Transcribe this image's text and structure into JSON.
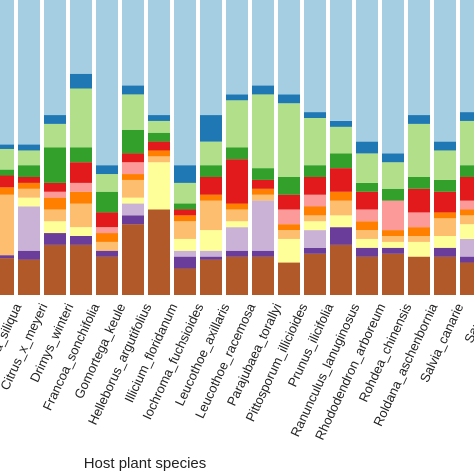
{
  "chart_data": {
    "type": "stacked_bar",
    "xlabel": "Host plant species",
    "categories": [
      "nsis",
      "ia_siliqua",
      "Citrus_x_meyeri",
      "Drimys_winteri",
      "Francoa_sonchifolia",
      "Gomortega_keule",
      "Helleborus_argutifolius",
      "Illicium_floridanum",
      "Iochroma_fuchsioides",
      "Leucothoe_axillaris",
      "Leucothoe_racemosa",
      "Parajubaea_torallyi",
      "Pittosporum_illicioides",
      "Prunus_ilicifolia",
      "Ranunculus_lanuginosus",
      "Rhododendron_arboreum",
      "Rohdea_chinensis",
      "Roldana_aschenbornia",
      "Salvia_canarie",
      "Saurau"
    ],
    "ylim": [
      0,
      100
    ],
    "series": [
      {
        "color": "#b15928",
        "values": [
          12.5,
          12.5,
          12,
          17,
          17,
          13,
          24,
          29,
          9,
          12,
          13,
          13,
          11,
          14,
          17,
          13,
          14,
          13,
          13,
          11
        ]
      },
      {
        "color": "#6a3d9a",
        "values": [
          1,
          1,
          3,
          4,
          3,
          2,
          3,
          0,
          4,
          1,
          2,
          2,
          0,
          2,
          6,
          3,
          2,
          0,
          3,
          2
        ]
      },
      {
        "color": "#cab2d6",
        "values": [
          0,
          0,
          15,
          0,
          0,
          0,
          4,
          0,
          2,
          2,
          8,
          17,
          0,
          6,
          0,
          0,
          0,
          0,
          0,
          6
        ]
      },
      {
        "color": "#ffff99",
        "values": [
          0,
          0,
          3,
          4,
          3,
          0,
          2,
          16,
          4,
          7,
          2,
          0,
          8,
          3,
          4,
          3,
          2,
          5,
          4,
          5
        ]
      },
      {
        "color": "#fdbf6f",
        "values": [
          20.5,
          20.5,
          3,
          4,
          8,
          3,
          6,
          2,
          6,
          10,
          4,
          2,
          3,
          2,
          5,
          3,
          2,
          2,
          6,
          3
        ]
      },
      {
        "color": "#ff7f00",
        "values": [
          2.5,
          2.5,
          2,
          4,
          4,
          3,
          2,
          2,
          2,
          2,
          2,
          2,
          2,
          3,
          3,
          3,
          2,
          3,
          2,
          2
        ]
      },
      {
        "color": "#fb9a99",
        "values": [
          0,
          0,
          0,
          2,
          3,
          2,
          4,
          0,
          0,
          0,
          0,
          0,
          5,
          4,
          0,
          4,
          10,
          5,
          0,
          3
        ]
      },
      {
        "color": "#e31a1c",
        "values": [
          4,
          4,
          2,
          3,
          7,
          5,
          3,
          3,
          2,
          6,
          15,
          3,
          5,
          6,
          8,
          6,
          0,
          8,
          7,
          8
        ]
      },
      {
        "color": "#33a02c",
        "values": [
          2,
          2,
          4,
          12,
          5,
          7,
          8,
          3,
          2,
          4,
          4,
          4,
          6,
          4,
          5,
          3,
          4,
          4,
          4,
          4
        ]
      },
      {
        "color": "#b2df8a",
        "values": [
          7,
          7,
          5,
          8,
          20,
          6,
          12,
          4,
          7,
          8,
          16,
          25,
          25,
          16,
          9,
          10,
          9,
          18,
          10,
          15
        ]
      },
      {
        "color": "#1f78b4",
        "values": [
          1.5,
          1.5,
          2,
          3,
          5,
          3,
          3,
          2,
          6,
          9,
          2,
          3,
          3,
          2,
          2,
          4,
          3,
          3,
          3,
          3
        ]
      },
      {
        "color": "#a6cee3",
        "values": [
          49,
          49,
          49,
          39,
          25,
          56,
          29,
          39,
          56,
          39,
          32,
          29,
          32,
          38,
          41,
          48,
          52,
          39,
          48,
          38
        ]
      }
    ]
  }
}
